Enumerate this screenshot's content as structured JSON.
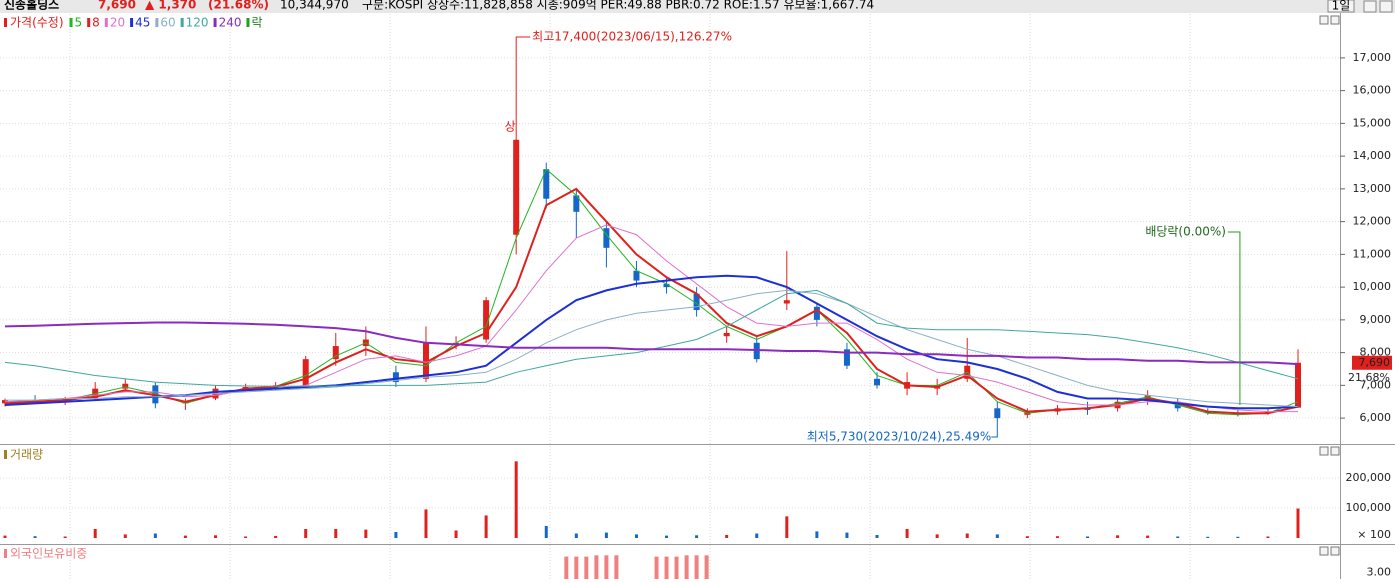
{
  "header": {
    "name": "신송홀딩스",
    "price": "7,690",
    "change": "▲ 1,370",
    "change_pct": "(21.68%)",
    "volume": "10,344,970",
    "info": "구분:KOSPI 상장수:11,828,858 시총:909억 PER:49.88 PBR:0.72 ROE:1.57 유보율:1,667.74",
    "period": "1일"
  },
  "chart_data": {
    "type": "candlestick",
    "price_label": "가격(수정)",
    "dividend_marker_label": "락",
    "ylim": [
      5240,
      18340
    ],
    "yticks": [
      {
        "value": 6000,
        "label": "6,000"
      },
      {
        "value": 7000,
        "label": "7,000"
      },
      {
        "value": 8000,
        "label": "8,000"
      },
      {
        "value": 9000,
        "label": "9,000"
      },
      {
        "value": 10000,
        "label": "10,000"
      },
      {
        "value": 11000,
        "label": "11,000"
      },
      {
        "value": 12000,
        "label": "12,000"
      },
      {
        "value": 13000,
        "label": "13,000"
      },
      {
        "value": 14000,
        "label": "14,000"
      },
      {
        "value": 15000,
        "label": "15,000"
      },
      {
        "value": 16000,
        "label": "16,000"
      },
      {
        "value": 17000,
        "label": "17,000"
      }
    ],
    "up_color": "#e0201c",
    "down_color": "#1467c8",
    "ohlc": [
      [
        6450,
        6600,
        6350,
        6550
      ],
      [
        6550,
        6700,
        6450,
        6500
      ],
      [
        6500,
        6650,
        6400,
        6600
      ],
      [
        6600,
        7100,
        6550,
        6900
      ],
      [
        6900,
        7200,
        6800,
        7050
      ],
      [
        7000,
        7100,
        6300,
        6450
      ],
      [
        6450,
        6600,
        6250,
        6500
      ],
      [
        6600,
        7000,
        6550,
        6900
      ],
      [
        6900,
        7050,
        6800,
        6950
      ],
      [
        6950,
        7100,
        6850,
        7000
      ],
      [
        7000,
        7900,
        6950,
        7800
      ],
      [
        7800,
        8600,
        7600,
        8200
      ],
      [
        8200,
        8800,
        7900,
        8400
      ],
      [
        7400,
        7600,
        6950,
        7100
      ],
      [
        7200,
        8800,
        7100,
        8300
      ],
      [
        8300,
        8500,
        8100,
        8300
      ],
      [
        8400,
        9700,
        8300,
        9600
      ],
      [
        11600,
        17400,
        11000,
        14500
      ],
      [
        13600,
        13800,
        12400,
        12700
      ],
      [
        12800,
        13000,
        11500,
        12300
      ],
      [
        11800,
        12000,
        10600,
        11200
      ],
      [
        10500,
        10800,
        10000,
        10200
      ],
      [
        10100,
        10300,
        9800,
        10000
      ],
      [
        9800,
        10000,
        9100,
        9300
      ],
      [
        8500,
        8800,
        8300,
        8600
      ],
      [
        8300,
        8500,
        7700,
        7800
      ],
      [
        9500,
        11100,
        9300,
        9600
      ],
      [
        9400,
        9500,
        8800,
        9000
      ],
      [
        8100,
        8300,
        7500,
        7600
      ],
      [
        7200,
        7400,
        6900,
        7000
      ],
      [
        6900,
        7400,
        6700,
        7100
      ],
      [
        6900,
        7200,
        6700,
        7000
      ],
      [
        7200,
        8450,
        7100,
        7600
      ],
      [
        6300,
        6500,
        5730,
        6000
      ],
      [
        6100,
        6300,
        6000,
        6200
      ],
      [
        6200,
        6400,
        6100,
        6300
      ],
      [
        6300,
        6500,
        6100,
        6250
      ],
      [
        6300,
        6600,
        6200,
        6500
      ],
      [
        6600,
        6850,
        6400,
        6700
      ],
      [
        6500,
        6600,
        6200,
        6300
      ],
      [
        6200,
        6300,
        6100,
        6150
      ],
      [
        6150,
        6250,
        6050,
        6100
      ],
      [
        6150,
        6300,
        6100,
        6200
      ],
      [
        6320,
        8100,
        6320,
        7690
      ]
    ],
    "series": [
      {
        "name": "5",
        "color": "#1fb81f",
        "width": 1,
        "values": [
          6500,
          6520,
          6550,
          6750,
          6950,
          6750,
          6450,
          6700,
          6900,
          6970,
          7300,
          7900,
          8300,
          7700,
          7600,
          8300,
          8800,
          11500,
          13600,
          12800,
          11600,
          10500,
          10100,
          9500,
          8800,
          8400,
          8800,
          9300,
          8400,
          7300,
          7000,
          7000,
          7400,
          6500,
          6150,
          6250,
          6300,
          6450,
          6650,
          6400,
          6150,
          6100,
          6150,
          6500
        ]
      },
      {
        "name": "8",
        "color": "#e0201c",
        "width": 2,
        "values": [
          6450,
          6500,
          6550,
          6650,
          6850,
          6700,
          6500,
          6700,
          6900,
          6950,
          7200,
          7700,
          8100,
          7800,
          7700,
          8200,
          8600,
          10000,
          12500,
          13000,
          12000,
          11000,
          10300,
          9800,
          8900,
          8500,
          8800,
          9300,
          8600,
          7500,
          7000,
          6950,
          7300,
          6600,
          6200,
          6250,
          6300,
          6400,
          6600,
          6450,
          6200,
          6150,
          6150,
          6350
        ]
      },
      {
        "name": "20",
        "color": "#e070d0",
        "width": 1,
        "values": [
          6500,
          6550,
          6600,
          6700,
          6800,
          6800,
          6650,
          6700,
          6850,
          6900,
          7000,
          7400,
          7800,
          7900,
          7700,
          7900,
          8200,
          9300,
          10500,
          11500,
          11900,
          11600,
          10800,
          10100,
          9400,
          8900,
          8800,
          8900,
          8900,
          8400,
          7800,
          7400,
          7300,
          7100,
          6800,
          6500,
          6400,
          6400,
          6500,
          6500,
          6350,
          6250,
          6200,
          6200
        ]
      },
      {
        "name": "45",
        "color": "#1c2fd8",
        "width": 2,
        "values": [
          6400,
          6450,
          6500,
          6550,
          6600,
          6650,
          6700,
          6800,
          6850,
          6900,
          6950,
          7000,
          7100,
          7200,
          7300,
          7400,
          7600,
          8300,
          9000,
          9600,
          9900,
          10100,
          10200,
          10300,
          10350,
          10300,
          10000,
          9500,
          9000,
          8500,
          8100,
          7800,
          7700,
          7500,
          7200,
          6800,
          6600,
          6600,
          6550,
          6450,
          6350,
          6300,
          6300,
          6350
        ]
      },
      {
        "name": "60",
        "color": "#8ab0c8",
        "width": 1,
        "values": [
          6550,
          6550,
          6600,
          6600,
          6650,
          6650,
          6700,
          6750,
          6800,
          6850,
          6900,
          6950,
          7050,
          7150,
          7250,
          7300,
          7400,
          7800,
          8300,
          8700,
          9000,
          9200,
          9300,
          9400,
          9600,
          9800,
          9900,
          9800,
          9500,
          9100,
          8700,
          8400,
          8100,
          7900,
          7600,
          7300,
          7000,
          6800,
          6700,
          6600,
          6500,
          6450,
          6400,
          6350
        ]
      },
      {
        "name": "120",
        "color": "#40a8a0",
        "width": 1,
        "values": [
          7700,
          7600,
          7450,
          7300,
          7200,
          7100,
          7050,
          7000,
          6980,
          6970,
          6970,
          6980,
          7000,
          7000,
          7000,
          7050,
          7100,
          7400,
          7600,
          7800,
          7900,
          8000,
          8200,
          8400,
          8800,
          9300,
          9800,
          9900,
          9500,
          8900,
          8750,
          8700,
          8700,
          8700,
          8650,
          8600,
          8550,
          8450,
          8300,
          8150,
          7950,
          7700,
          7450,
          7200
        ]
      },
      {
        "name": "240",
        "color": "#8a2bc0",
        "width": 2,
        "values": [
          8800,
          8820,
          8850,
          8880,
          8900,
          8920,
          8920,
          8900,
          8880,
          8850,
          8800,
          8750,
          8650,
          8450,
          8300,
          8250,
          8200,
          8150,
          8150,
          8150,
          8150,
          8100,
          8100,
          8100,
          8100,
          8080,
          8050,
          8050,
          8000,
          8000,
          7950,
          7950,
          7900,
          7900,
          7850,
          7850,
          7800,
          7800,
          7750,
          7750,
          7700,
          7700,
          7700,
          7650
        ]
      }
    ],
    "annotations": {
      "high": "최고17,400(2023/06/15),126.27%",
      "low": "최저5,730(2023/10/24),25.49%",
      "dividend": "배당락(0.00%)",
      "limit_up": "상",
      "last_price": "7,690",
      "last_change": "21.68%"
    },
    "volume": {
      "title": "거래량",
      "unit_label": "× 100",
      "ylim": [
        0,
        306000
      ],
      "yticks": [
        {
          "value": 100000,
          "label": "100,000"
        },
        {
          "value": 200000,
          "label": "200,000"
        }
      ],
      "values": [
        8000,
        6000,
        5000,
        30000,
        12000,
        15000,
        8000,
        9000,
        5000,
        7000,
        30000,
        30000,
        28000,
        20000,
        95000,
        25000,
        75000,
        255000,
        40000,
        15000,
        18000,
        12000,
        8000,
        9000,
        10000,
        15000,
        72000,
        22000,
        18000,
        10000,
        30000,
        12000,
        15000,
        12000,
        6000,
        6000,
        5000,
        9000,
        8000,
        5000,
        4000,
        4000,
        5000,
        98000
      ]
    },
    "foreign": {
      "title": "외국인보유비중",
      "color": "#f08080",
      "ylim": [
        2.9,
        3.4
      ],
      "yticks": [
        {
          "value": 3,
          "label": "3.00"
        }
      ],
      "values": [
        null,
        null,
        null,
        null,
        null,
        null,
        null,
        null,
        null,
        null,
        null,
        null,
        null,
        null,
        null,
        null,
        null,
        null,
        null,
        3.25,
        3.27,
        null,
        3.25,
        3.27,
        null,
        null,
        null,
        null,
        null,
        null,
        null,
        null,
        null,
        null,
        null,
        null,
        null,
        null,
        null,
        null,
        null,
        null,
        null,
        null
      ]
    }
  }
}
